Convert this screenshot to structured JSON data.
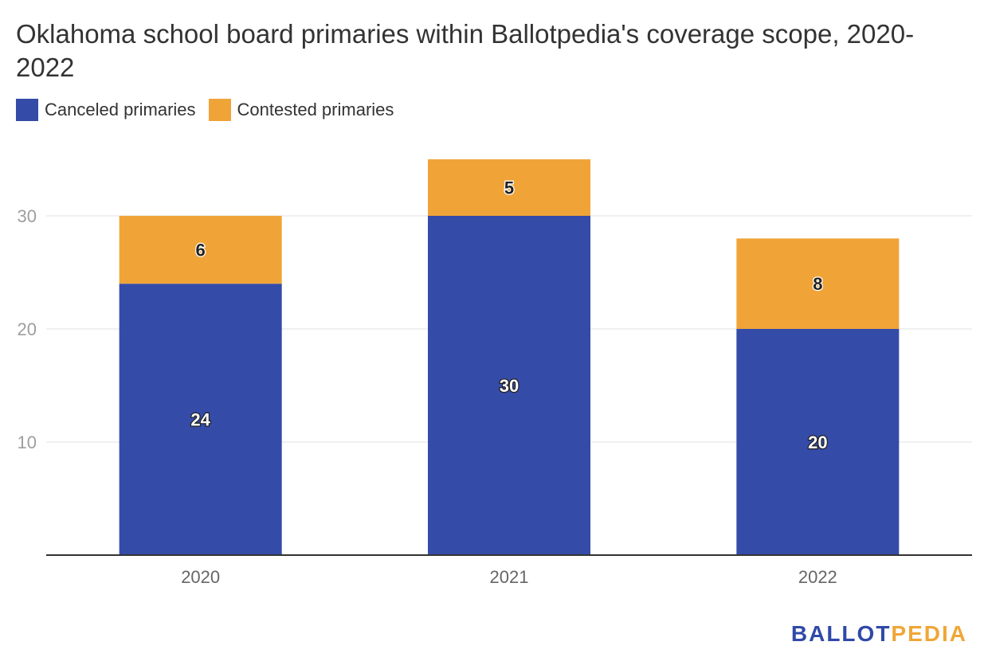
{
  "title": "Oklahoma school board primaries within Ballotpedia's coverage scope, 2020-2022",
  "colors": {
    "canceled": "#344ba8",
    "contested": "#f0a438",
    "grid": "#e0e0e0",
    "axis": "#333333",
    "tick": "#9e9e9e"
  },
  "logo": {
    "part1": "BALLOT",
    "part2": "PEDIA"
  },
  "chart_data": {
    "type": "bar",
    "stacked": true,
    "categories": [
      "2020",
      "2021",
      "2022"
    ],
    "series": [
      {
        "name": "Canceled primaries",
        "values": [
          24,
          30,
          20
        ],
        "color": "#344ba8"
      },
      {
        "name": "Contested primaries",
        "values": [
          6,
          5,
          8
        ],
        "color": "#f0a438"
      }
    ],
    "yticks": [
      "10",
      "20",
      "30"
    ],
    "ylim": [
      0,
      35
    ],
    "grid": true,
    "legend": "top-left"
  }
}
